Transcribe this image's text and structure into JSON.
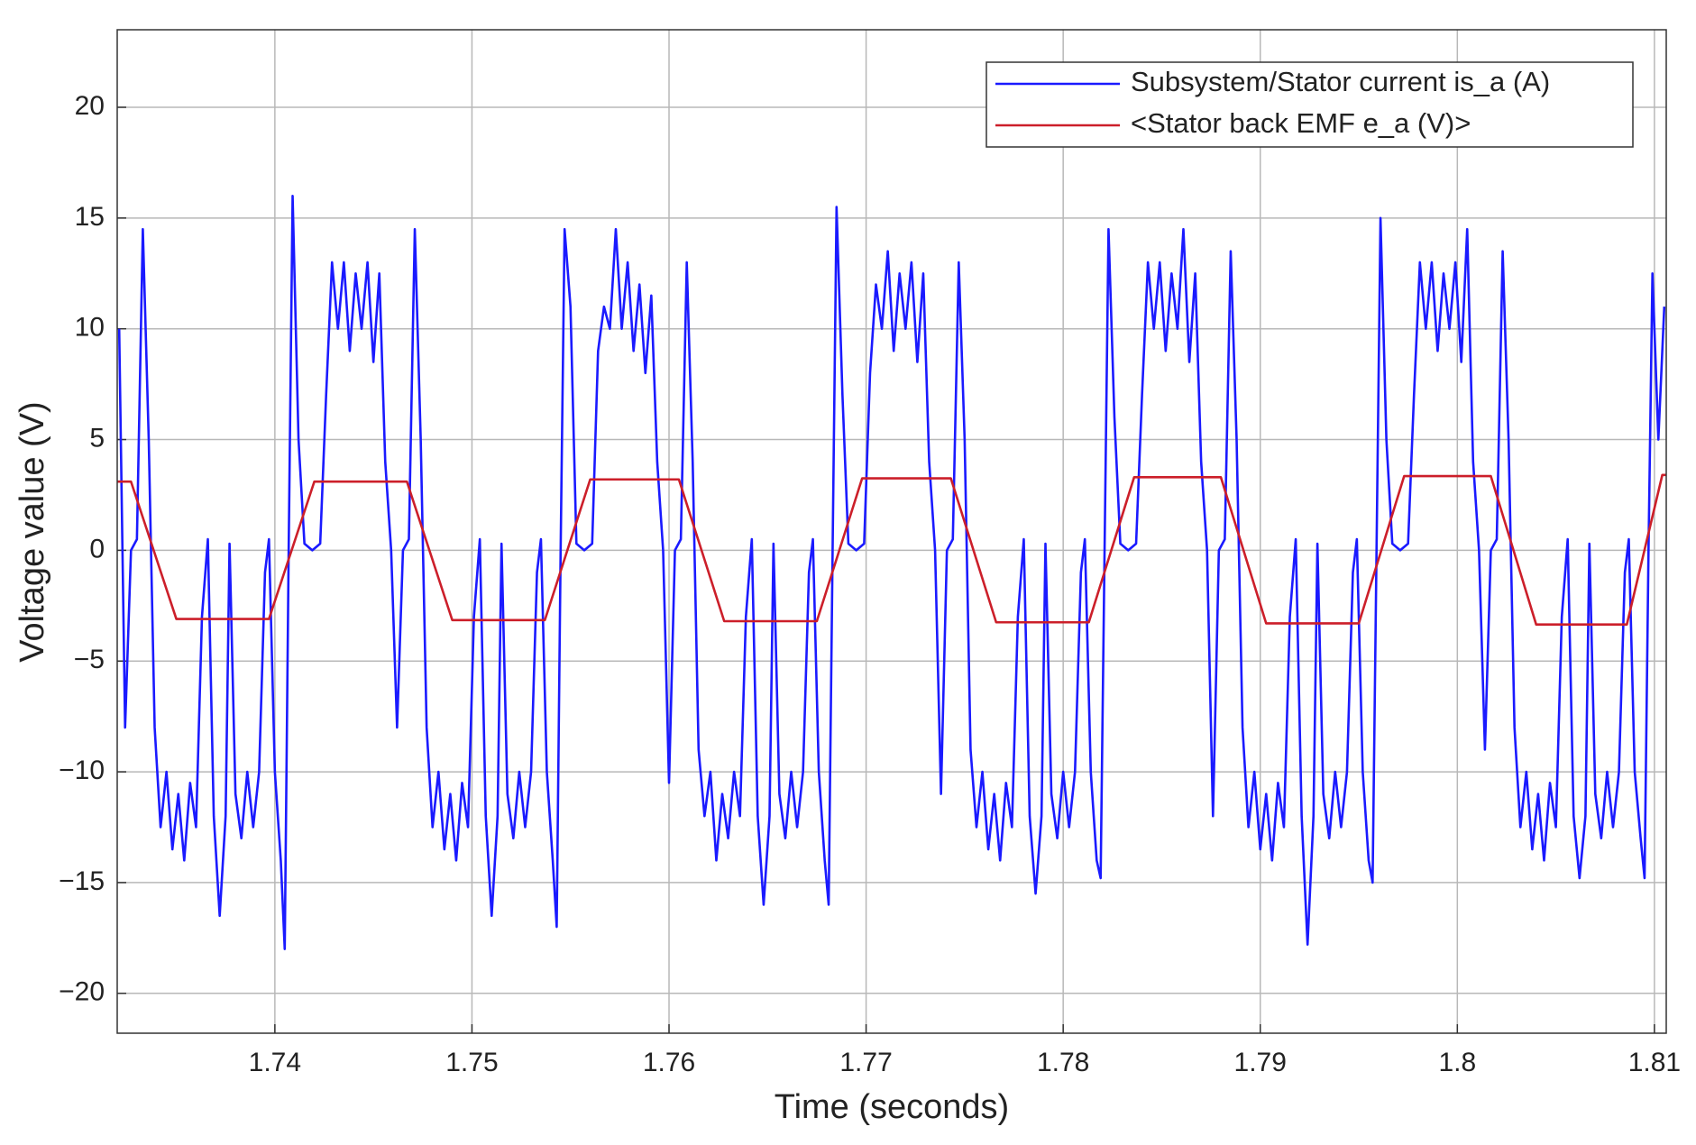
{
  "chart_data": {
    "type": "line",
    "xlabel": "Time (seconds)",
    "ylabel": "Voltage value (V)",
    "xlim": [
      1.732,
      1.8106
    ],
    "ylim": [
      -21.8,
      23.5
    ],
    "xticks": [
      1.74,
      1.75,
      1.76,
      1.77,
      1.78,
      1.79,
      1.8,
      1.81
    ],
    "yticks": [
      {
        "value": -20,
        "label": "−20"
      },
      {
        "value": -15,
        "label": "−15"
      },
      {
        "value": -10,
        "label": "−10"
      },
      {
        "value": -5,
        "label": "−5"
      },
      0,
      5,
      10,
      15,
      20
    ],
    "grid": true,
    "legend": "upper right",
    "series": [
      {
        "name": "Subsystem/Stator current is_a (A)",
        "color": "#1a1aff",
        "x": [
          1.7321,
          1.7324,
          1.7327,
          1.733,
          1.7333,
          1.7336,
          1.7339,
          1.7342,
          1.7345,
          1.7348,
          1.7351,
          1.7354,
          1.7357,
          1.736,
          1.7363,
          1.7366,
          1.7369,
          1.7372,
          1.7375,
          1.7377,
          1.738,
          1.7383,
          1.7386,
          1.7389,
          1.7392,
          1.7395,
          1.7397,
          1.74,
          1.7403,
          1.7405,
          1.7407,
          1.7409,
          1.7412,
          1.7415,
          1.7419,
          1.7423,
          1.7426,
          1.7429,
          1.7432,
          1.7435,
          1.7438,
          1.7441,
          1.7444,
          1.7447,
          1.745,
          1.7453,
          1.7456,
          1.7459,
          1.7462,
          1.7465,
          1.7468,
          1.7471,
          1.7474,
          1.7477,
          1.748,
          1.7483,
          1.7486,
          1.7489,
          1.7492,
          1.7495,
          1.7498,
          1.7501,
          1.7504,
          1.7507,
          1.751,
          1.7513,
          1.7515,
          1.7518,
          1.7521,
          1.7524,
          1.7527,
          1.753,
          1.7533,
          1.7535,
          1.7538,
          1.7541,
          1.7543,
          1.7545,
          1.7547,
          1.755,
          1.7553,
          1.7557,
          1.7561,
          1.7564,
          1.7567,
          1.757,
          1.7573,
          1.7576,
          1.7579,
          1.7582,
          1.7585,
          1.7588,
          1.7591,
          1.7594,
          1.7597,
          1.76,
          1.7603,
          1.7606,
          1.7609,
          1.7612,
          1.7615,
          1.7618,
          1.7621,
          1.7624,
          1.7627,
          1.763,
          1.7633,
          1.7636,
          1.7639,
          1.7642,
          1.7645,
          1.7648,
          1.7651,
          1.7653,
          1.7656,
          1.7659,
          1.7662,
          1.7665,
          1.7668,
          1.7671,
          1.7673,
          1.7676,
          1.7679,
          1.7681,
          1.7683,
          1.7685,
          1.7688,
          1.7691,
          1.7695,
          1.7699,
          1.7702,
          1.7705,
          1.7708,
          1.7711,
          1.7714,
          1.7717,
          1.772,
          1.7723,
          1.7726,
          1.7729,
          1.7732,
          1.7735,
          1.7738,
          1.7741,
          1.7744,
          1.7747,
          1.775,
          1.7753,
          1.7756,
          1.7759,
          1.7762,
          1.7765,
          1.7768,
          1.7771,
          1.7774,
          1.7777,
          1.778,
          1.7783,
          1.7786,
          1.7789,
          1.7791,
          1.7794,
          1.7797,
          1.78,
          1.7803,
          1.7806,
          1.7809,
          1.7811,
          1.7814,
          1.7817,
          1.7819,
          1.7821,
          1.7823,
          1.7826,
          1.7829,
          1.7833,
          1.7837,
          1.784,
          1.7843,
          1.7846,
          1.7849,
          1.7852,
          1.7855,
          1.7858,
          1.7861,
          1.7864,
          1.7867,
          1.787,
          1.7873,
          1.7876,
          1.7879,
          1.7882,
          1.7885,
          1.7888,
          1.7891,
          1.7894,
          1.7897,
          1.79,
          1.7903,
          1.7906,
          1.7909,
          1.7912,
          1.7915,
          1.7918,
          1.7921,
          1.7924,
          1.7927,
          1.7929,
          1.7932,
          1.7935,
          1.7938,
          1.7941,
          1.7944,
          1.7947,
          1.7949,
          1.7952,
          1.7955,
          1.7957,
          1.7959,
          1.7961,
          1.7964,
          1.7967,
          1.7971,
          1.7975,
          1.7978,
          1.7981,
          1.7984,
          1.7987,
          1.799,
          1.7993,
          1.7996,
          1.7999,
          1.8002,
          1.8005,
          1.8008,
          1.8011,
          1.8014,
          1.8017,
          1.802,
          1.8023,
          1.8026,
          1.8029,
          1.8032,
          1.8035,
          1.8038,
          1.8041,
          1.8044,
          1.8047,
          1.805,
          1.8053,
          1.8056,
          1.8059,
          1.8062,
          1.8065,
          1.8067,
          1.807,
          1.8073,
          1.8076,
          1.8079,
          1.8082,
          1.8085,
          1.8087,
          1.809,
          1.8093,
          1.8095,
          1.8097,
          1.8099,
          1.8102,
          1.8105
        ],
        "values": [
          10,
          -8,
          0,
          0.5,
          14.5,
          5,
          -8,
          -12.5,
          -10,
          -13.5,
          -11,
          -14,
          -10.5,
          -12.5,
          -3,
          0.5,
          -12,
          -16.5,
          -12,
          0.3,
          -11,
          -13,
          -10,
          -12.5,
          -10,
          -1,
          0.5,
          -10,
          -14,
          -18,
          0,
          16,
          5,
          0.3,
          0,
          0.3,
          7,
          13,
          10,
          13,
          9,
          12.5,
          10,
          13,
          8.5,
          12.5,
          4,
          0,
          -8,
          0,
          0.5,
          14.5,
          5,
          -8,
          -12.5,
          -10,
          -13.5,
          -11,
          -14,
          -10.5,
          -12.5,
          -3,
          0.5,
          -12,
          -16.5,
          -12,
          0.3,
          -11,
          -13,
          -10,
          -12.5,
          -10,
          -1,
          0.5,
          -10,
          -14,
          -17,
          0,
          14.5,
          11,
          0.3,
          0,
          0.3,
          9,
          11,
          10,
          14.5,
          10,
          13,
          9,
          12,
          8,
          11.5,
          4,
          0,
          -10.5,
          0,
          0.5,
          13,
          4,
          -9,
          -12,
          -10,
          -14,
          -11,
          -13,
          -10,
          -12,
          -3,
          0.5,
          -12,
          -16,
          -12,
          0.3,
          -11,
          -13,
          -10,
          -12.5,
          -10,
          -1,
          0.5,
          -10,
          -14,
          -16,
          0,
          15.5,
          7,
          0.3,
          0,
          0.3,
          8,
          12,
          10,
          13.5,
          9,
          12.5,
          10,
          13,
          8.5,
          12.5,
          4,
          0,
          -11,
          0,
          0.5,
          13,
          5,
          -9,
          -12.5,
          -10,
          -13.5,
          -11,
          -14,
          -10.5,
          -12.5,
          -3,
          0.5,
          -12,
          -15.5,
          -12,
          0.3,
          -11,
          -13,
          -10,
          -12.5,
          -10,
          -1,
          0.5,
          -10,
          -14,
          -14.8,
          0,
          14.5,
          6,
          0.3,
          0,
          0.3,
          7,
          13,
          10,
          13,
          9,
          12.5,
          10,
          14.5,
          8.5,
          12.5,
          4,
          0,
          -12,
          0,
          0.5,
          13.5,
          5,
          -8,
          -12.5,
          -10,
          -13.5,
          -11,
          -14,
          -10.5,
          -12.5,
          -3,
          0.5,
          -12,
          -17.8,
          -12,
          0.3,
          -11,
          -13,
          -10,
          -12.5,
          -10,
          -1,
          0.5,
          -10,
          -14,
          -15,
          0,
          15,
          5,
          0.3,
          0,
          0.3,
          7,
          13,
          10,
          13,
          9,
          12.5,
          10,
          13,
          8.5,
          14.5,
          4,
          0,
          -9,
          0,
          0.5,
          13.5,
          5,
          -8,
          -12.5,
          -10,
          -13.5,
          -11,
          -14,
          -10.5,
          -12.5,
          -3,
          0.5,
          -12,
          -14.8,
          -12,
          0.3,
          -11,
          -13,
          -10,
          -12.5,
          -10,
          -1,
          0.5,
          -10,
          -13,
          -14.8,
          0,
          12.5,
          5,
          11
        ]
      },
      {
        "name": "<Stator back EMF e_a (V)>",
        "color": "#cc1f2a",
        "x": [
          1.732,
          1.7327,
          1.735,
          1.7397,
          1.742,
          1.7467,
          1.749,
          1.7537,
          1.756,
          1.7605,
          1.7628,
          1.7675,
          1.7698,
          1.7743,
          1.7766,
          1.7813,
          1.7836,
          1.788,
          1.7903,
          1.795,
          1.7973,
          1.8017,
          1.804,
          1.8086,
          1.8104,
          1.8106
        ],
        "values": [
          3.1,
          3.1,
          -3.1,
          -3.1,
          3.1,
          3.1,
          -3.15,
          -3.15,
          3.2,
          3.2,
          -3.2,
          -3.2,
          3.25,
          3.25,
          -3.25,
          -3.25,
          3.3,
          3.3,
          -3.3,
          -3.3,
          3.35,
          3.35,
          -3.35,
          -3.35,
          3.4,
          3.4
        ]
      }
    ]
  }
}
